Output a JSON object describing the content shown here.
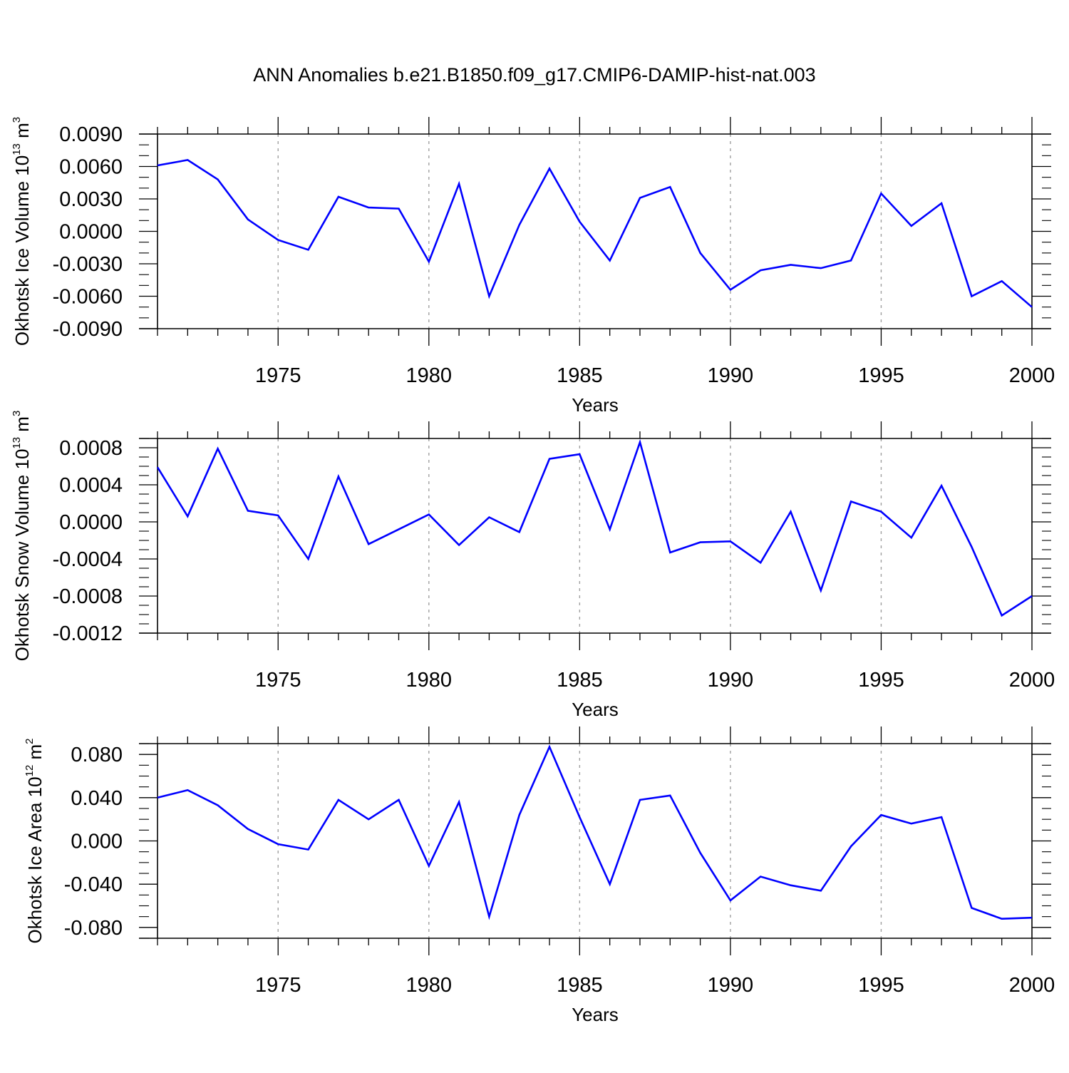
{
  "title": "ANN Anomalies b.e21.B1850.f09_g17.CMIP6-DAMIP-hist-nat.003",
  "colors": {
    "line": "#0000ff",
    "axis": "#000000",
    "grid": "#a0a0a0"
  },
  "chart_data": [
    {
      "type": "line",
      "ylabel": {
        "text": "Okhotsk Ice Volume 10",
        "sup": "13",
        "unit": " m",
        "unit_sup": "3"
      },
      "xlabel": "Years",
      "xlim": [
        1971,
        2000
      ],
      "ylim": [
        -0.009,
        0.009
      ],
      "grid": "dashed vertical at 5-year ticks",
      "xticks": [
        1975,
        1980,
        1985,
        1990,
        1995,
        2000
      ],
      "xtick_labels": [
        "1975",
        "1980",
        "1985",
        "1990",
        "1995",
        "2000"
      ],
      "yticks": [
        -0.009,
        -0.006,
        -0.003,
        0.0,
        0.003,
        0.006,
        0.009
      ],
      "ytick_labels": [
        "-0.0090",
        "-0.0060",
        "-0.0030",
        "0.0000",
        "0.0030",
        "0.0060",
        "0.0090"
      ],
      "yminor_step": 0.001,
      "x": [
        1971,
        1972,
        1973,
        1974,
        1975,
        1976,
        1977,
        1978,
        1979,
        1980,
        1981,
        1982,
        1983,
        1984,
        1985,
        1986,
        1987,
        1988,
        1989,
        1990,
        1991,
        1992,
        1993,
        1994,
        1995,
        1996,
        1997,
        1998,
        1999,
        2000
      ],
      "values": [
        0.0061,
        0.0066,
        0.0048,
        0.0011,
        -0.0008,
        -0.0017,
        0.0032,
        0.0022,
        0.0021,
        -0.0028,
        0.0044,
        -0.006,
        0.0006,
        0.0058,
        0.0009,
        -0.0027,
        0.0031,
        0.0041,
        -0.002,
        -0.0054,
        -0.0036,
        -0.0031,
        -0.0034,
        -0.0027,
        0.0035,
        0.0005,
        0.0026,
        -0.006,
        -0.0046,
        -0.007
      ]
    },
    {
      "type": "line",
      "ylabel": {
        "text": "Okhotsk Snow Volume 10",
        "sup": "13",
        "unit": " m",
        "unit_sup": "3"
      },
      "xlabel": "Years",
      "xlim": [
        1971,
        2000
      ],
      "ylim": [
        -0.0012,
        0.0009
      ],
      "grid": "dashed vertical at 5-year ticks",
      "xticks": [
        1975,
        1980,
        1985,
        1990,
        1995,
        2000
      ],
      "xtick_labels": [
        "1975",
        "1980",
        "1985",
        "1990",
        "1995",
        "2000"
      ],
      "yticks": [
        -0.0012,
        -0.0008,
        -0.0004,
        0.0,
        0.0004,
        0.0008
      ],
      "ytick_labels": [
        "-0.0012",
        "-0.0008",
        "-0.0004",
        "0.0000",
        "0.0004",
        "0.0008"
      ],
      "yminor_step": 0.0001,
      "x": [
        1971,
        1972,
        1973,
        1974,
        1975,
        1976,
        1977,
        1978,
        1979,
        1980,
        1981,
        1982,
        1983,
        1984,
        1985,
        1986,
        1987,
        1988,
        1989,
        1990,
        1991,
        1992,
        1993,
        1994,
        1995,
        1996,
        1997,
        1998,
        1999,
        2000
      ],
      "values": [
        0.00059,
        6e-05,
        0.00079,
        0.00012,
        7e-05,
        -0.0004,
        0.00049,
        -0.00024,
        -8e-05,
        8e-05,
        -0.00025,
        5e-05,
        -0.00011,
        0.00068,
        0.00073,
        -8e-05,
        0.00086,
        -0.00033,
        -0.00022,
        -0.00021,
        -0.00044,
        0.00011,
        -0.00074,
        0.00022,
        0.00011,
        -0.00017,
        0.00039,
        -0.00027,
        -0.00101,
        -0.0008
      ]
    },
    {
      "type": "line",
      "ylabel": {
        "text": "Okhotsk Ice Area 10",
        "sup": "12",
        "unit": " m",
        "unit_sup": "2"
      },
      "xlabel": "Years",
      "xlim": [
        1971,
        2000
      ],
      "ylim": [
        -0.09,
        0.09
      ],
      "grid": "dashed vertical at 5-year ticks",
      "xticks": [
        1975,
        1980,
        1985,
        1990,
        1995,
        2000
      ],
      "xtick_labels": [
        "1975",
        "1980",
        "1985",
        "1990",
        "1995",
        "2000"
      ],
      "yticks": [
        -0.08,
        -0.04,
        0.0,
        0.04,
        0.08
      ],
      "ytick_labels": [
        "-0.080",
        "-0.040",
        "0.000",
        "0.040",
        "0.080"
      ],
      "yminor_step": 0.01,
      "x": [
        1971,
        1972,
        1973,
        1974,
        1975,
        1976,
        1977,
        1978,
        1979,
        1980,
        1981,
        1982,
        1983,
        1984,
        1985,
        1986,
        1987,
        1988,
        1989,
        1990,
        1991,
        1992,
        1993,
        1994,
        1995,
        1996,
        1997,
        1998,
        1999,
        2000
      ],
      "values": [
        0.04,
        0.047,
        0.033,
        0.011,
        -0.003,
        -0.008,
        0.038,
        0.02,
        0.038,
        -0.023,
        0.036,
        -0.07,
        0.024,
        0.087,
        0.022,
        -0.04,
        0.038,
        0.042,
        -0.011,
        -0.055,
        -0.033,
        -0.041,
        -0.046,
        -0.005,
        0.024,
        0.016,
        0.022,
        -0.062,
        -0.072,
        -0.071
      ]
    }
  ]
}
